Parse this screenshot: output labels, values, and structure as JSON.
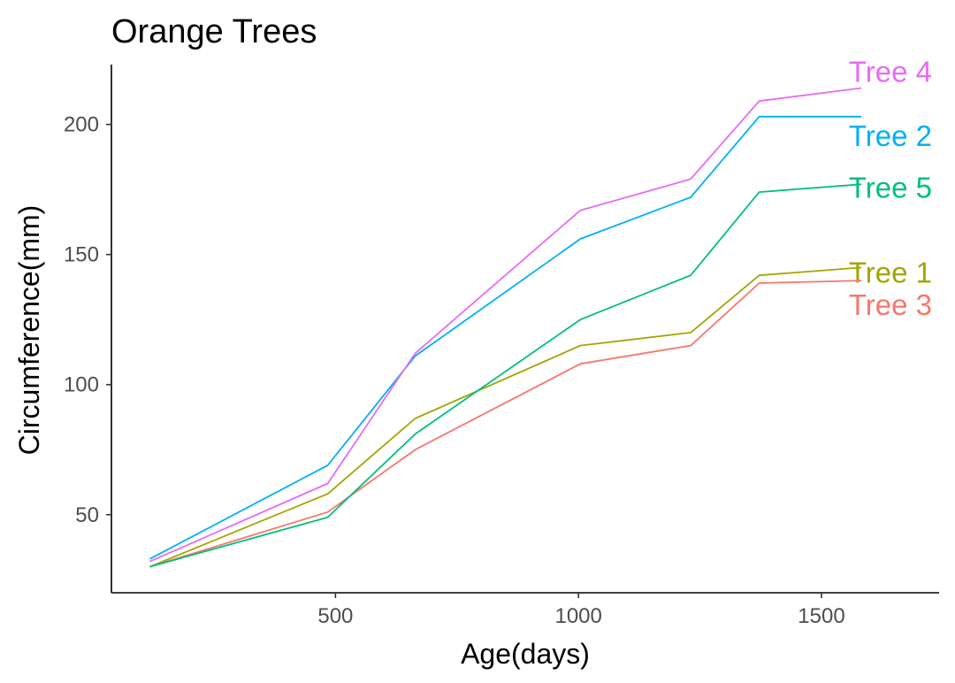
{
  "chart_data": {
    "type": "line",
    "title": "Orange Trees",
    "xlabel": "Age(days)",
    "ylabel": "Circumference(mm)",
    "xlim": [
      39,
      1742
    ],
    "ylim": [
      20,
      223
    ],
    "x_ticks": [
      500,
      1000,
      1500
    ],
    "y_ticks": [
      50,
      100,
      150,
      200
    ],
    "grid": false,
    "legend": "direct labels at right end of lines",
    "x": [
      118,
      484,
      664,
      1004,
      1231,
      1372,
      1582
    ],
    "series": [
      {
        "name": "Tree 1",
        "color": "#A3A500",
        "values": [
          30,
          58,
          87,
          115,
          120,
          142,
          145
        ]
      },
      {
        "name": "Tree 2",
        "color": "#00B0F6",
        "values": [
          33,
          69,
          111,
          156,
          172,
          203,
          203
        ]
      },
      {
        "name": "Tree 3",
        "color": "#F8766D",
        "values": [
          30,
          51,
          75,
          108,
          115,
          139,
          140
        ]
      },
      {
        "name": "Tree 4",
        "color": "#E76BF3",
        "values": [
          32,
          62,
          112,
          167,
          179,
          209,
          214
        ]
      },
      {
        "name": "Tree 5",
        "color": "#00BF7D",
        "values": [
          30,
          49,
          81,
          125,
          142,
          174,
          177
        ]
      }
    ]
  }
}
